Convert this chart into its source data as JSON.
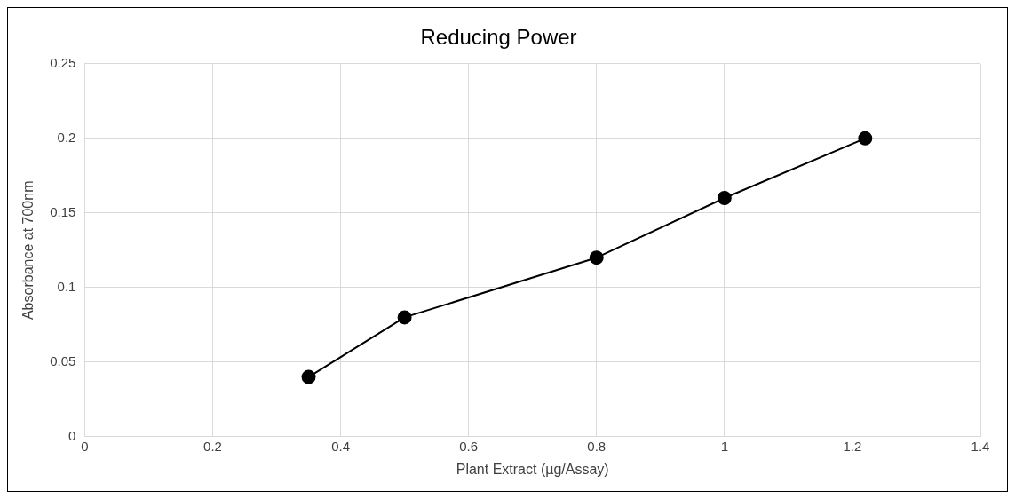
{
  "chart_data": {
    "type": "line",
    "title": "Reducing Power",
    "xlabel": "Plant Extract (µg/Assay)",
    "ylabel": "Absorbance at 700nm",
    "x": [
      0.35,
      0.5,
      0.8,
      1,
      1.22
    ],
    "series": [
      {
        "color": "#000000",
        "values": [
          0.04,
          0.08,
          0.12,
          0.16,
          0.2
        ]
      }
    ],
    "xlim": [
      0,
      1.4
    ],
    "xticks": [
      0,
      0.2,
      0.4,
      0.6,
      0.8,
      1,
      1.2,
      1.4
    ],
    "ylim": [
      0,
      0.25
    ],
    "yticks": [
      0,
      0.05,
      0.1,
      0.15,
      0.2,
      0.25
    ],
    "grid": true,
    "marker": "circle",
    "line_style": "solid",
    "legend": false
  }
}
